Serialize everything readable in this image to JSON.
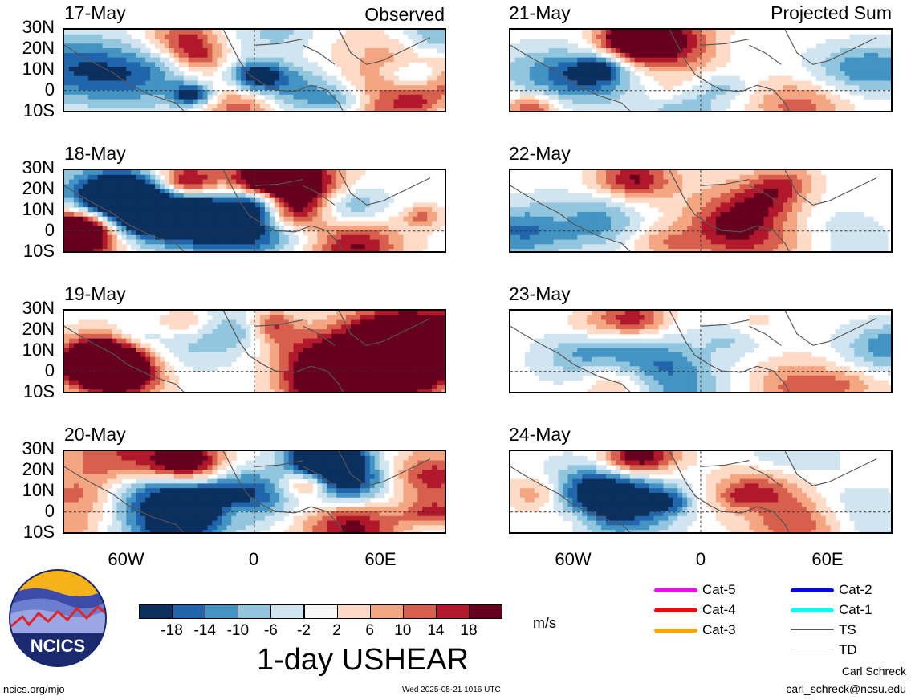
{
  "headers": {
    "observed": "Observed",
    "projected": "Projected Sum"
  },
  "chart_data": {
    "type": "heatmap",
    "title": "1-day USHEAR",
    "units": "m/s",
    "lat_ticks": [
      "30N",
      "20N",
      "10N",
      "0",
      "10S"
    ],
    "lon_ticks": [
      "60W",
      "0",
      "60E"
    ],
    "lat_range": [
      -10,
      30
    ],
    "lon_range": [
      -100,
      100
    ],
    "panels": [
      {
        "date": "17-May",
        "group": "Observed"
      },
      {
        "date": "18-May",
        "group": "Observed"
      },
      {
        "date": "19-May",
        "group": "Observed"
      },
      {
        "date": "20-May",
        "group": "Observed"
      },
      {
        "date": "21-May",
        "group": "Projected Sum"
      },
      {
        "date": "22-May",
        "group": "Projected Sum"
      },
      {
        "date": "23-May",
        "group": "Projected Sum"
      },
      {
        "date": "24-May",
        "group": "Projected Sum"
      }
    ],
    "colorbar": {
      "ticks": [
        "-18",
        "-14",
        "-10",
        "-6",
        "-2",
        "2",
        "6",
        "10",
        "14",
        "18"
      ],
      "colors": [
        "#0b2f5e",
        "#2166ac",
        "#4393c3",
        "#92c5de",
        "#d1e5f0",
        "#f7f7f7",
        "#fddbc7",
        "#f4a582",
        "#d6604d",
        "#b2182b",
        "#67001f"
      ]
    }
  },
  "legend": [
    {
      "label": "Cat-5",
      "color": "#ff00ff"
    },
    {
      "label": "Cat-4",
      "color": "#ff0000"
    },
    {
      "label": "Cat-3",
      "color": "#ffa500"
    },
    {
      "label": "Cat-2",
      "color": "#0000ff"
    },
    {
      "label": "Cat-1",
      "color": "#00ffff"
    },
    {
      "label": "TS",
      "color": "#555555"
    },
    {
      "label": "TD",
      "color": "#bbbbbb"
    }
  ],
  "logo": {
    "text": "NCICS"
  },
  "footer": {
    "url": "ncics.org/mjo",
    "timestamp": "Wed 2025-05-21 1016 UTC",
    "author": "Carl Schreck",
    "email": "carl_schreck@ncsu.edu"
  }
}
